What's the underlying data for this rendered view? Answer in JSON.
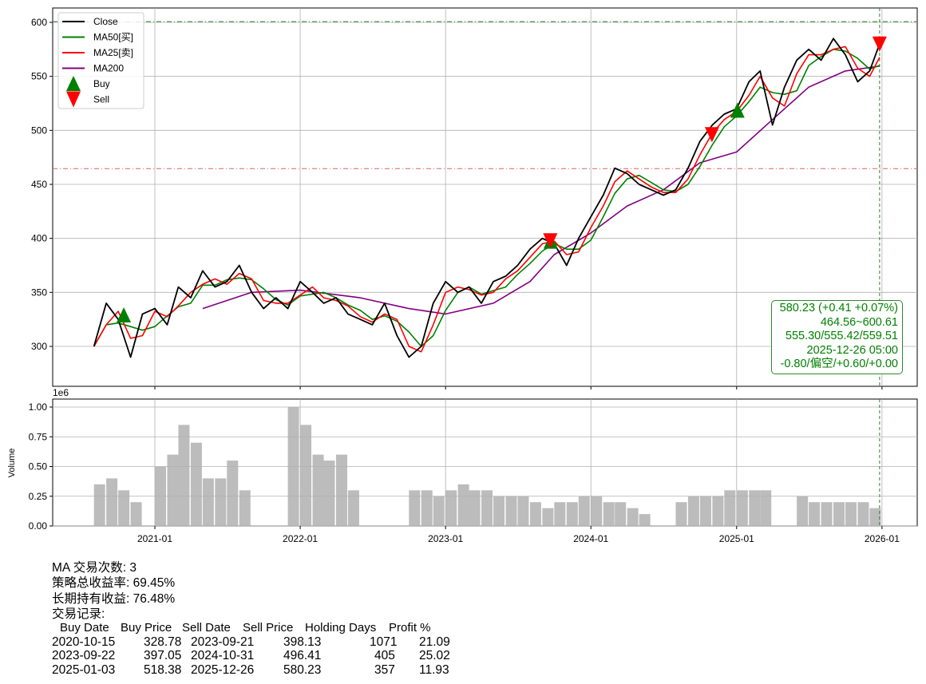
{
  "chart_data": [
    {
      "type": "line",
      "title": "",
      "ylim": [
        275,
        612
      ],
      "yticks": [
        300,
        350,
        400,
        450,
        500,
        550,
        600
      ],
      "xticks": [
        "2021-01",
        "2022-01",
        "2023-01",
        "2024-01",
        "2025-01",
        "2026-01"
      ],
      "grid": true,
      "legend_position": "top-left",
      "legend": [
        "Close",
        "MA50[买]",
        "MA25[卖]",
        "MA200",
        "Buy",
        "Sell"
      ],
      "colors": {
        "close": "#000000",
        "ma50": "#008000",
        "ma25": "#ff0000",
        "ma200": "#800080",
        "buy": "#008000",
        "sell": "#ff0000"
      },
      "x": [
        "2020-08-01",
        "2020-09-01",
        "2020-10-01",
        "2020-11-01",
        "2020-12-01",
        "2021-01-01",
        "2021-02-01",
        "2021-03-01",
        "2021-04-01",
        "2021-05-01",
        "2021-06-01",
        "2021-07-01",
        "2021-08-01",
        "2021-09-01",
        "2021-10-01",
        "2021-11-01",
        "2021-12-01",
        "2022-01-01",
        "2022-02-01",
        "2022-03-01",
        "2022-04-01",
        "2022-05-01",
        "2022-06-01",
        "2022-07-01",
        "2022-08-01",
        "2022-09-01",
        "2022-10-01",
        "2022-11-01",
        "2022-12-01",
        "2023-01-01",
        "2023-02-01",
        "2023-03-01",
        "2023-04-01",
        "2023-05-01",
        "2023-06-01",
        "2023-07-01",
        "2023-08-01",
        "2023-09-01",
        "2023-10-01",
        "2023-11-01",
        "2023-12-01",
        "2024-01-01",
        "2024-02-01",
        "2024-03-01",
        "2024-04-01",
        "2024-05-01",
        "2024-06-01",
        "2024-07-01",
        "2024-08-01",
        "2024-09-01",
        "2024-10-01",
        "2024-11-01",
        "2024-12-01",
        "2025-01-01",
        "2025-02-01",
        "2025-03-01",
        "2025-04-01",
        "2025-05-01",
        "2025-06-01",
        "2025-07-01",
        "2025-08-01",
        "2025-09-01",
        "2025-10-01",
        "2025-11-01",
        "2025-12-01",
        "2025-12-26"
      ],
      "series": [
        {
          "name": "Close",
          "values": [
            300,
            340,
            325,
            290,
            330,
            335,
            320,
            355,
            345,
            370,
            355,
            360,
            375,
            350,
            335,
            345,
            335,
            360,
            350,
            340,
            345,
            330,
            325,
            320,
            340,
            310,
            290,
            300,
            340,
            360,
            350,
            355,
            340,
            360,
            365,
            375,
            390,
            400,
            395,
            375,
            400,
            420,
            440,
            465,
            460,
            450,
            445,
            440,
            445,
            465,
            490,
            505,
            515,
            520,
            545,
            555,
            505,
            540,
            565,
            575,
            565,
            585,
            570,
            545,
            555,
            580.23
          ]
        },
        {
          "name": "MA200",
          "x": [
            "2021-05-01",
            "2021-09-01",
            "2022-01-01",
            "2022-06-01",
            "2022-10-01",
            "2023-01-01",
            "2023-05-01",
            "2023-08-01",
            "2023-10-01",
            "2024-01-01",
            "2024-04-01",
            "2024-07-01",
            "2024-10-01",
            "2025-01-01",
            "2025-04-01",
            "2025-07-01",
            "2025-10-01",
            "2025-12-26"
          ],
          "values": [
            335,
            350,
            352,
            345,
            335,
            330,
            340,
            360,
            385,
            405,
            430,
            445,
            470,
            480,
            510,
            540,
            555,
            559.51
          ]
        }
      ],
      "markers": {
        "buy": [
          {
            "date": "2020-10-15",
            "price": 328.78
          },
          {
            "date": "2023-09-22",
            "price": 397.05
          },
          {
            "date": "2025-01-03",
            "price": 518.38
          }
        ],
        "sell": [
          {
            "date": "2023-09-21",
            "price": 398.13
          },
          {
            "date": "2024-10-31",
            "price": 496.41
          },
          {
            "date": "2025-12-26",
            "price": 580.23
          }
        ]
      },
      "reference_lines": {
        "high": 600.61,
        "low": 464.56,
        "current_date": "2025-12-26"
      }
    },
    {
      "type": "bar",
      "ylabel": "Volume",
      "offset_label": "1e6",
      "ylim": [
        0,
        1.05
      ],
      "yticks": [
        "0.00",
        "0.25",
        "0.50",
        "0.75",
        "1.00"
      ],
      "color": "#b0b0b0",
      "x": [
        "2020-08",
        "2020-09",
        "2020-10",
        "2020-11",
        "2020-12",
        "2021-01",
        "2021-02",
        "2021-03",
        "2021-04",
        "2021-05",
        "2021-06",
        "2021-07",
        "2021-08",
        "2021-09",
        "2021-10",
        "2021-11",
        "2021-12",
        "2022-01",
        "2022-02",
        "2022-03",
        "2022-04",
        "2022-05",
        "2022-06",
        "2022-07",
        "2022-08",
        "2022-09",
        "2022-10",
        "2022-11",
        "2022-12",
        "2023-01",
        "2023-02",
        "2023-03",
        "2023-04",
        "2023-05",
        "2023-06",
        "2023-07",
        "2023-08",
        "2023-09",
        "2023-10",
        "2023-11",
        "2023-12",
        "2024-01",
        "2024-02",
        "2024-03",
        "2024-04",
        "2024-05",
        "2024-06",
        "2024-07",
        "2024-08",
        "2024-09",
        "2024-10",
        "2024-11",
        "2024-12",
        "2025-01",
        "2025-02",
        "2025-03",
        "2025-04",
        "2025-05",
        "2025-06",
        "2025-07",
        "2025-08",
        "2025-09",
        "2025-10",
        "2025-11",
        "2025-12"
      ],
      "values": [
        0.35,
        0.4,
        0.3,
        0.2,
        0,
        0.5,
        0.6,
        0.85,
        0.7,
        0.4,
        0.4,
        0.55,
        0.3,
        0,
        0,
        0,
        1.0,
        0.85,
        0.6,
        0.55,
        0.6,
        0.3,
        0,
        0,
        0,
        0,
        0.3,
        0.3,
        0.25,
        0.3,
        0.35,
        0.3,
        0.3,
        0.25,
        0.25,
        0.25,
        0.2,
        0.15,
        0.2,
        0.2,
        0.25,
        0.25,
        0.2,
        0.2,
        0.15,
        0.1,
        0,
        0,
        0.2,
        0.25,
        0.25,
        0.25,
        0.3,
        0.3,
        0.3,
        0.3,
        0,
        0,
        0.25,
        0.2,
        0.2,
        0.2,
        0.2,
        0.2,
        0.15
      ]
    }
  ],
  "info_box": {
    "line1": "580.23 (+0.41 +0.07%)",
    "line2": "464.56~600.61",
    "line3": "555.30/555.42/559.51",
    "line4": "2025-12-26 05:00",
    "line5": "-0.80/偏空/+0.60/+0.00"
  },
  "summary": {
    "trades": "MA 交易次数: 3",
    "strategy_return": "策略总收益率: 69.45%",
    "buy_hold_return": "长期持有收益: 76.48%",
    "records_label": "交易记录:"
  },
  "trade_table": {
    "headers": [
      "Buy Date",
      "Buy Price",
      "Sell Date",
      "Sell Price",
      "Holding Days",
      "Profit %"
    ],
    "rows": [
      [
        "2020-10-15",
        "328.78",
        "2023-09-21",
        "398.13",
        "1071",
        "21.09"
      ],
      [
        "2023-09-22",
        "397.05",
        "2024-10-31",
        "496.41",
        "405",
        "25.02"
      ],
      [
        "2025-01-03",
        "518.38",
        "2025-12-26",
        "580.23",
        "357",
        "11.93"
      ]
    ]
  }
}
